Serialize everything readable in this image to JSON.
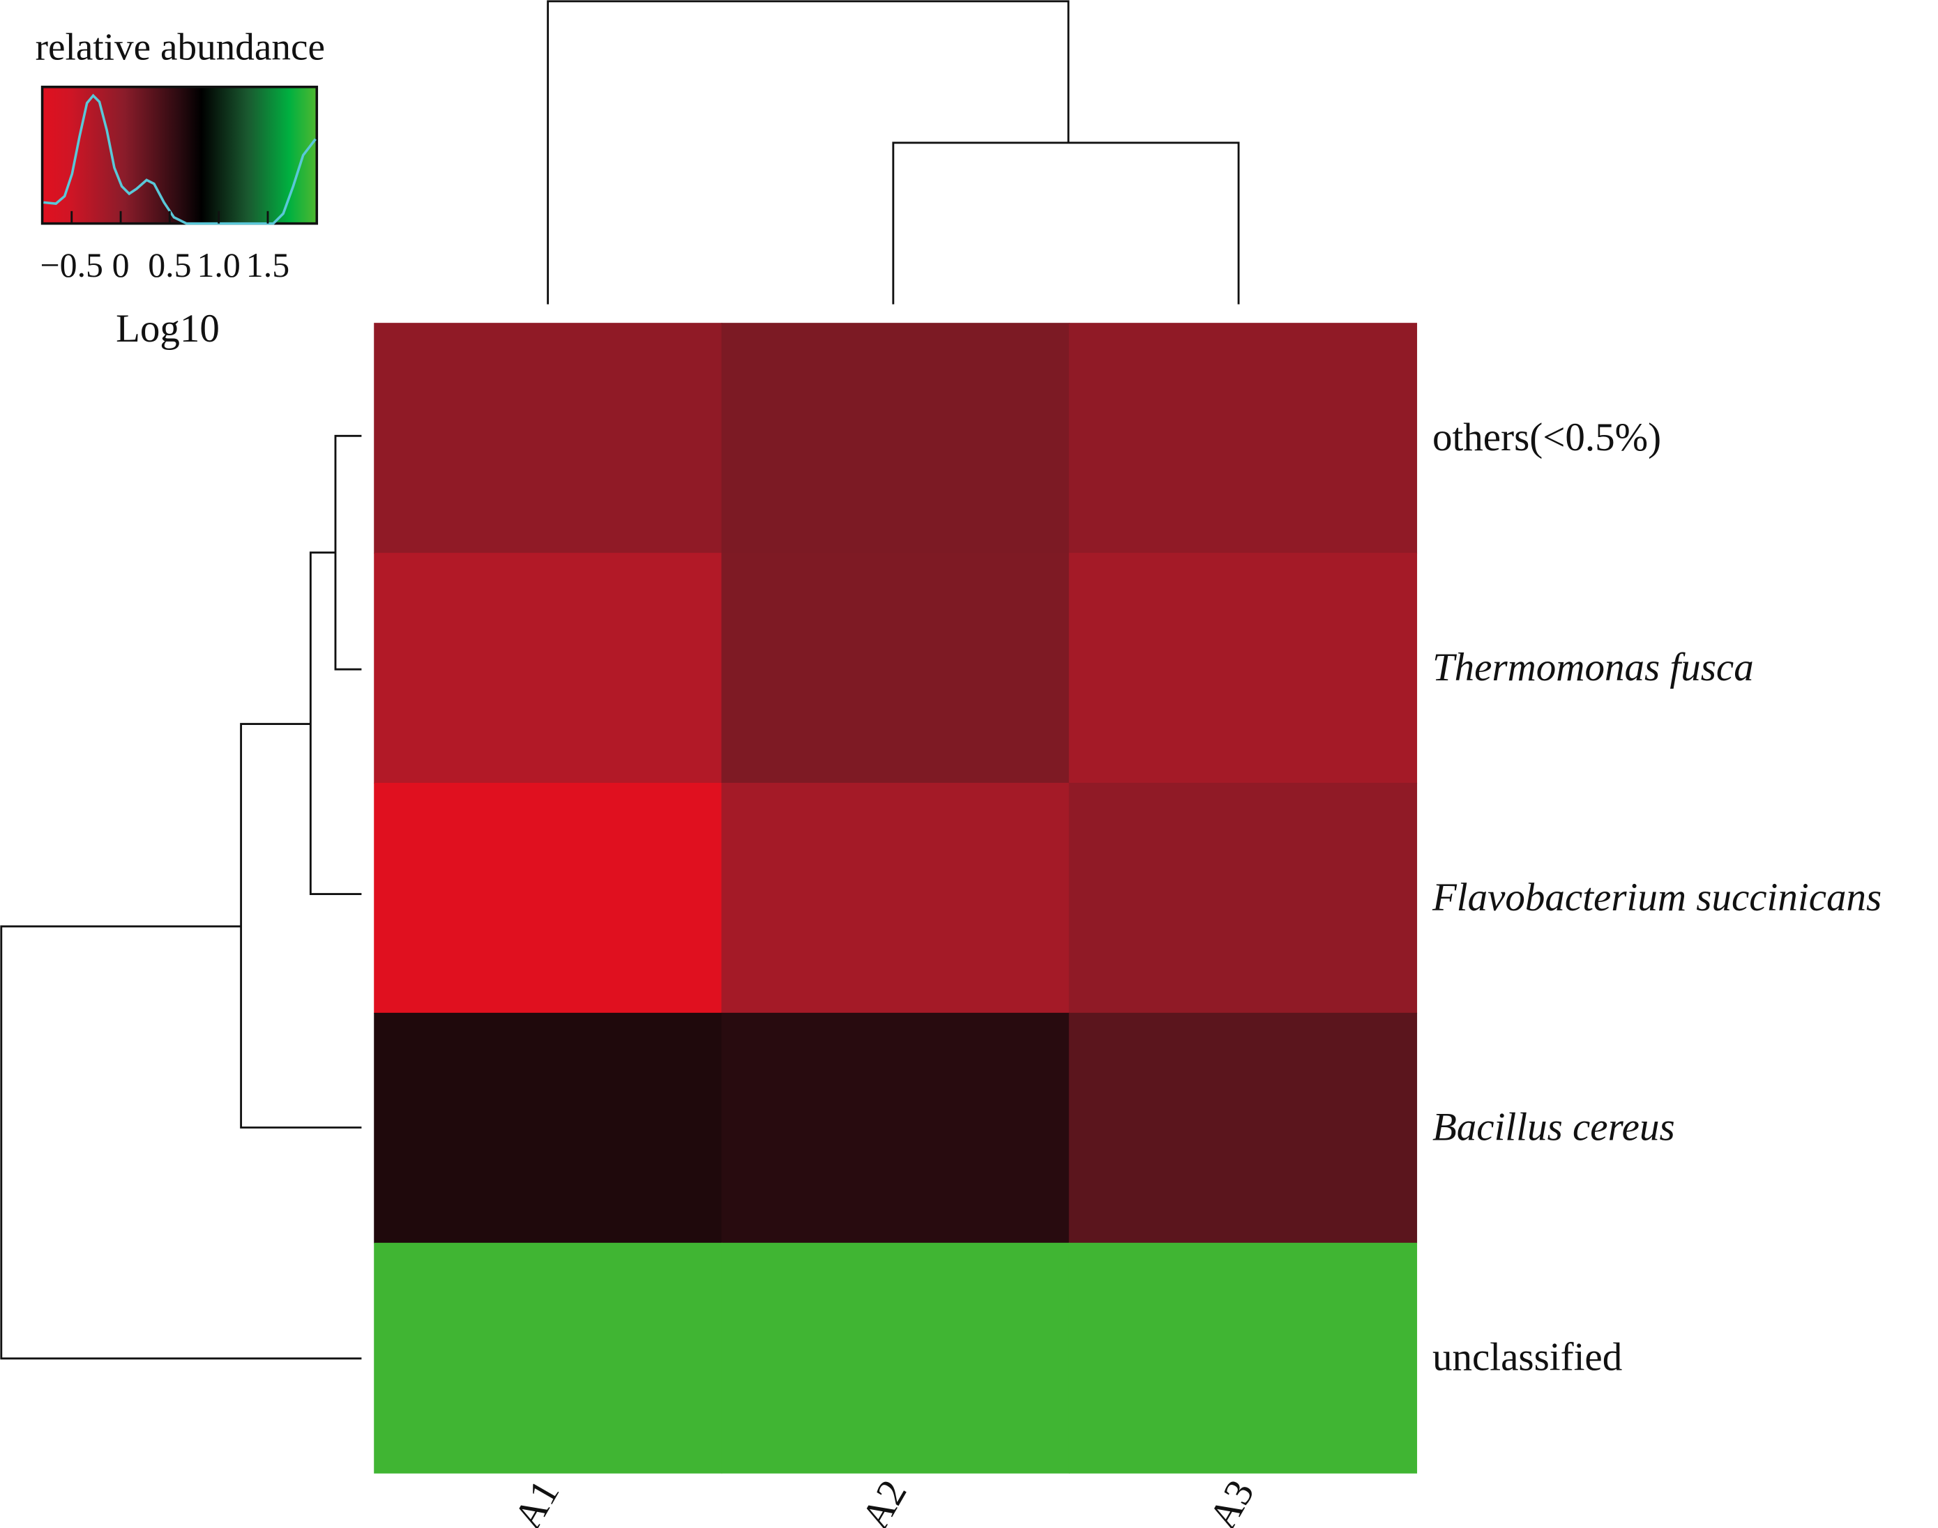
{
  "chart_data": {
    "type": "heatmap",
    "title": "",
    "legend": {
      "title": "relative abundance",
      "xlabel": "Log10",
      "ticks": [
        "−0.5",
        "0",
        "0.5",
        "1.0",
        "1.5"
      ],
      "tick_values": [
        -0.5,
        0,
        0.5,
        1.0,
        1.5
      ],
      "range": [
        -0.8,
        2.0
      ],
      "colors": {
        "low": "#e0101f",
        "mid": "#000000",
        "high": "#50b830"
      },
      "density_color": "#5ac8d8"
    },
    "columns": [
      "A1",
      "A2",
      "A3"
    ],
    "rows": [
      {
        "label": "others(<0.5%)",
        "italic": false,
        "values": [
          -0.33,
          -0.22,
          -0.33
        ]
      },
      {
        "label": "Thermomonas  fusca",
        "italic": true,
        "values": [
          -0.52,
          -0.23,
          -0.44
        ]
      },
      {
        "label": "Flavobacterium  succinicans",
        "italic": true,
        "values": [
          -0.8,
          -0.44,
          -0.33
        ]
      },
      {
        "label": "Bacillus  cereus",
        "italic": true,
        "values": [
          0.3,
          0.22,
          -0.05
        ]
      },
      {
        "label": "unclassified",
        "italic": false,
        "values": [
          1.9,
          1.9,
          1.9
        ]
      }
    ],
    "column_dendrogram": "A1,(A2,A3)",
    "row_dendrogram": "((((others,Thermomonas fusca),Flavobacterium succinicans),Bacillus cereus),unclassified)"
  }
}
